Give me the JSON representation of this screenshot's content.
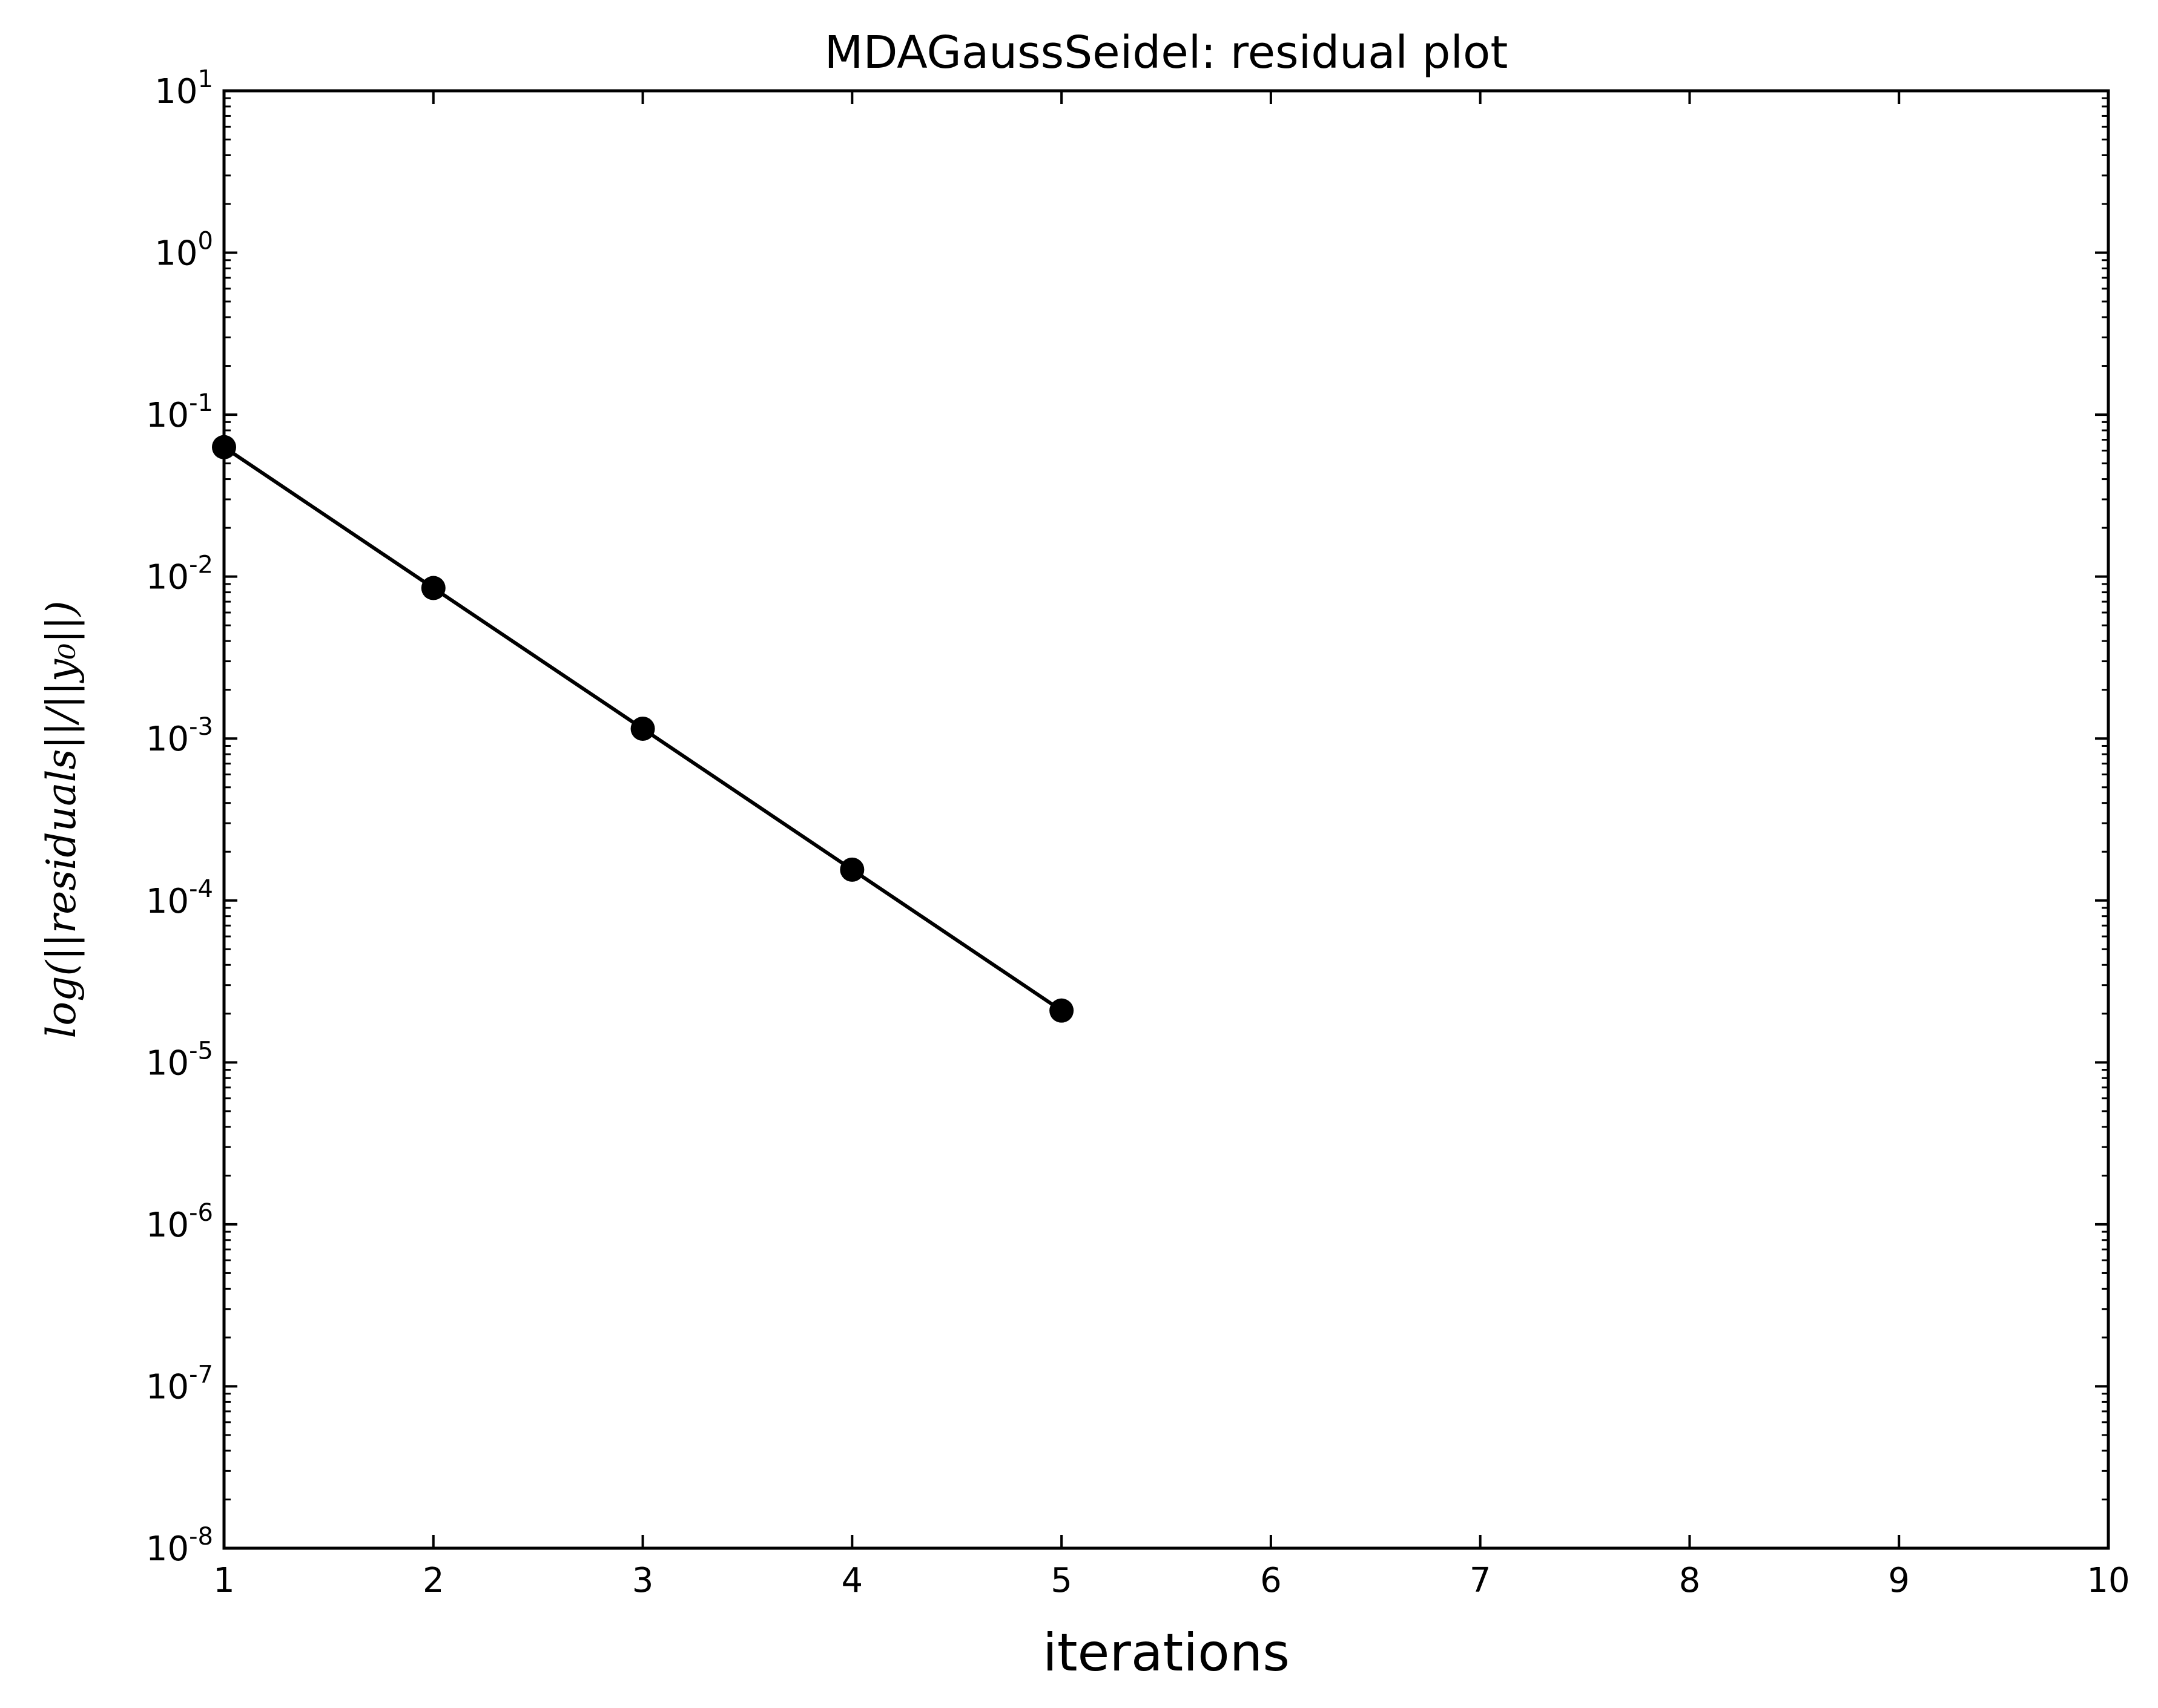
{
  "chart_data": {
    "type": "line",
    "title": "MDAGaussSeidel: residual plot",
    "xlabel": "iterations",
    "ylabel": "log(||residuals||/||y₀||)",
    "xlim": [
      1,
      10
    ],
    "ylim": [
      1e-08,
      10
    ],
    "yscale": "log",
    "x_ticks": [
      1,
      2,
      3,
      4,
      5,
      6,
      7,
      8,
      9,
      10
    ],
    "y_ticks": [
      {
        "base": "10",
        "exp": "1",
        "value": 10
      },
      {
        "base": "10",
        "exp": "0",
        "value": 1
      },
      {
        "base": "10",
        "exp": "-1",
        "value": 0.1
      },
      {
        "base": "10",
        "exp": "-2",
        "value": 0.01
      },
      {
        "base": "10",
        "exp": "-3",
        "value": 0.001
      },
      {
        "base": "10",
        "exp": "-4",
        "value": 0.0001
      },
      {
        "base": "10",
        "exp": "-5",
        "value": 1e-05
      },
      {
        "base": "10",
        "exp": "-6",
        "value": 1e-06
      },
      {
        "base": "10",
        "exp": "-7",
        "value": 1e-07
      },
      {
        "base": "10",
        "exp": "-8",
        "value": 1e-08
      }
    ],
    "grid": false,
    "series": [
      {
        "color": "#000000",
        "marker": "circle",
        "x": [
          1,
          2,
          3,
          4,
          5
        ],
        "y": [
          0.063,
          0.0085,
          0.00115,
          0.000155,
          2.09e-05
        ]
      }
    ]
  }
}
